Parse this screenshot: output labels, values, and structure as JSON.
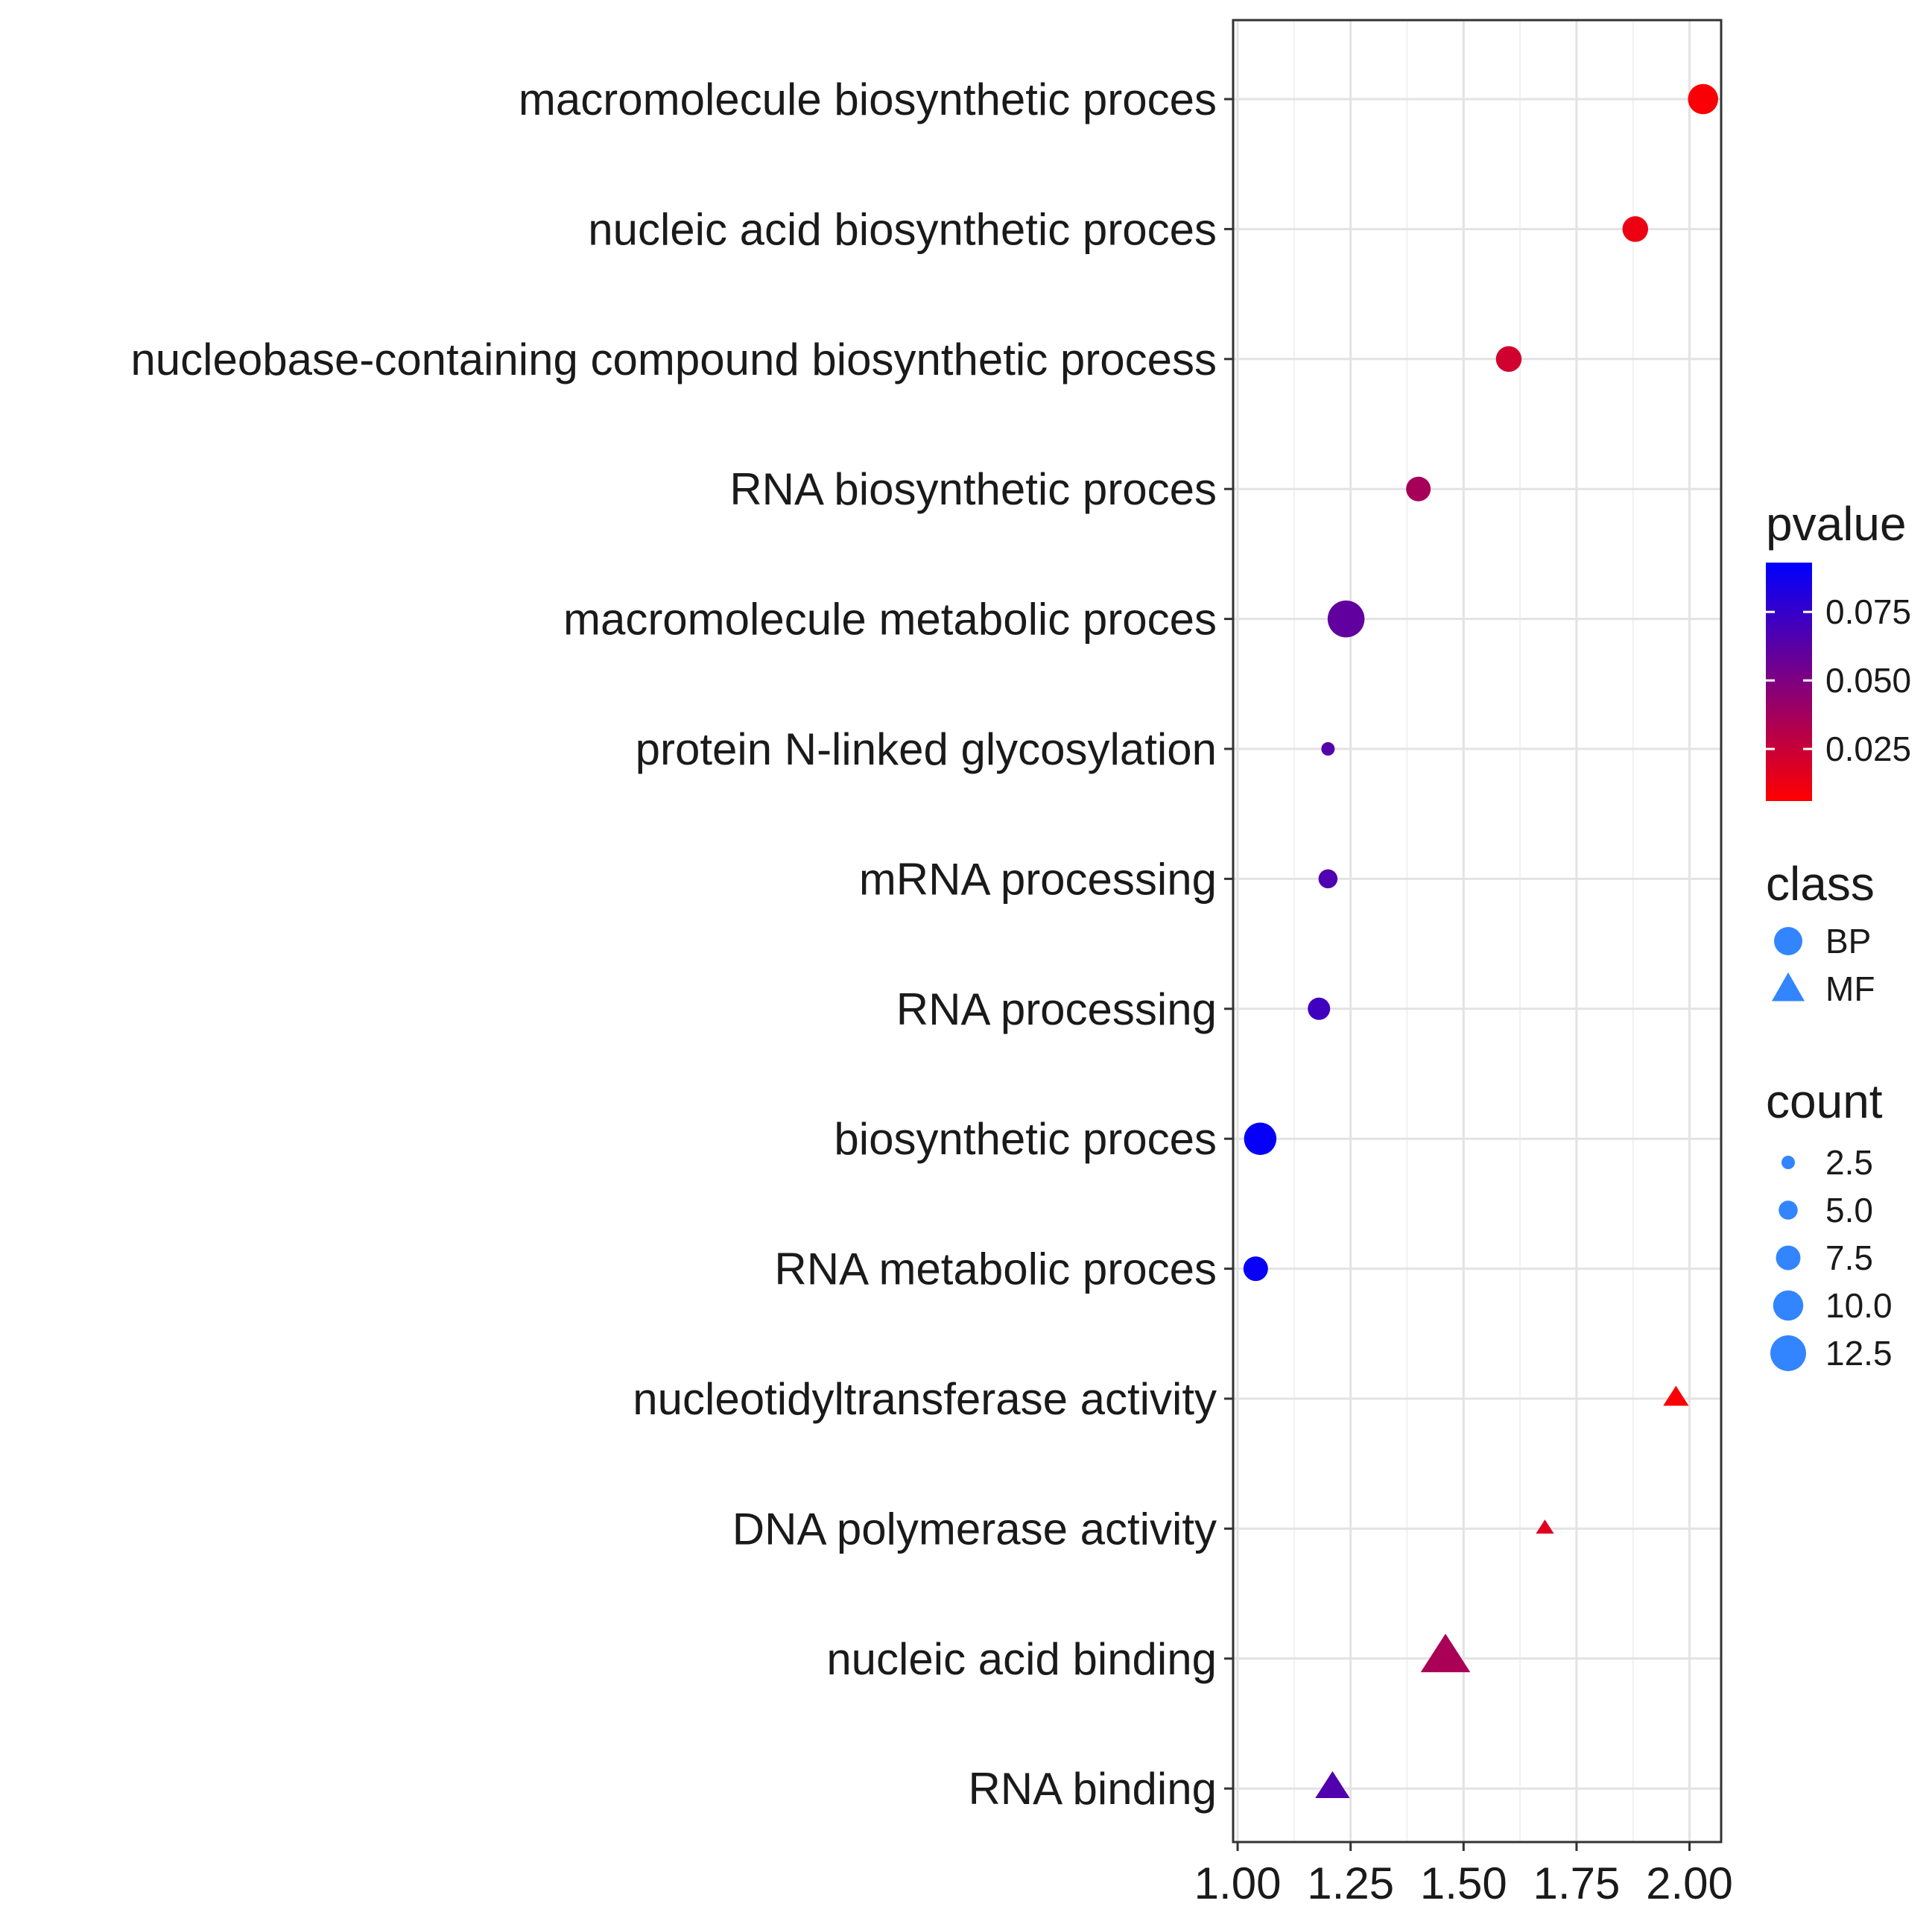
{
  "chart_data": {
    "type": "scatter",
    "title": "",
    "xlabel": "",
    "ylabel": "",
    "xlim": [
      0.99,
      2.07
    ],
    "x_ticks": [
      1.0,
      1.25,
      1.5,
      1.75,
      2.0
    ],
    "x_tick_labels": [
      "1.00",
      "1.25",
      "1.50",
      "1.75",
      "2.00"
    ],
    "grid": true,
    "legend_position": "right",
    "categories": [
      "macromolecule biosynthetic proces",
      "nucleic acid biosynthetic proces",
      "nucleobase-containing compound biosynthetic process",
      "RNA biosynthetic proces",
      "macromolecule metabolic proces",
      "protein N-linked glycosylation",
      "mRNA processing",
      "RNA processing",
      "biosynthetic proces",
      "RNA metabolic proces",
      "nucleotidyltransferase activity",
      "DNA polymerase activity",
      "nucleic acid binding",
      "RNA binding"
    ],
    "points": [
      {
        "term": "macromolecule biosynthetic proces",
        "x": 2.03,
        "pvalue": 0.008,
        "count": 10.0,
        "class": "BP"
      },
      {
        "term": "nucleic acid biosynthetic proces",
        "x": 1.88,
        "pvalue": 0.012,
        "count": 8.0,
        "class": "BP"
      },
      {
        "term": "nucleobase-containing compound biosynthetic process",
        "x": 1.6,
        "pvalue": 0.022,
        "count": 8.0,
        "class": "BP"
      },
      {
        "term": "RNA biosynthetic proces",
        "x": 1.4,
        "pvalue": 0.036,
        "count": 7.5,
        "class": "BP"
      },
      {
        "term": "macromolecule metabolic proces",
        "x": 1.24,
        "pvalue": 0.06,
        "count": 13.0,
        "class": "BP"
      },
      {
        "term": "protein N-linked glycosylation",
        "x": 1.2,
        "pvalue": 0.064,
        "count": 2.5,
        "class": "BP"
      },
      {
        "term": "mRNA processing",
        "x": 1.2,
        "pvalue": 0.066,
        "count": 5.0,
        "class": "BP"
      },
      {
        "term": "RNA processing",
        "x": 1.18,
        "pvalue": 0.071,
        "count": 6.5,
        "class": "BP"
      },
      {
        "term": "biosynthetic proces",
        "x": 1.05,
        "pvalue": 0.091,
        "count": 11.0,
        "class": "BP"
      },
      {
        "term": "RNA metabolic proces",
        "x": 1.04,
        "pvalue": 0.09,
        "count": 7.5,
        "class": "BP"
      },
      {
        "term": "nucleotidyltransferase activity",
        "x": 1.97,
        "pvalue": 0.007,
        "count": 5.0,
        "class": "MF"
      },
      {
        "term": "DNA polymerase activity",
        "x": 1.68,
        "pvalue": 0.017,
        "count": 2.5,
        "class": "MF"
      },
      {
        "term": "nucleic acid binding",
        "x": 1.46,
        "pvalue": 0.035,
        "count": 13.0,
        "class": "MF"
      },
      {
        "term": "RNA binding",
        "x": 1.21,
        "pvalue": 0.065,
        "count": 8.0,
        "class": "MF"
      }
    ],
    "legend": {
      "pvalue": {
        "title": "pvalue",
        "range": [
          0.006,
          0.093
        ],
        "low_color": "#ff0000",
        "high_color": "#0000ff",
        "ticks": [
          0.025,
          0.05,
          0.075
        ],
        "tick_labels": [
          "0.025",
          "0.050",
          "0.075"
        ]
      },
      "class": {
        "title": "class",
        "items": [
          {
            "label": "BP",
            "shape": "circle"
          },
          {
            "label": "MF",
            "shape": "triangle"
          }
        ],
        "color": "#3385ff"
      },
      "count": {
        "title": "count",
        "values": [
          2.5,
          5.0,
          7.5,
          10.0,
          12.5
        ],
        "labels": [
          "2.5",
          "5.0",
          "7.5",
          "10.0",
          "12.5"
        ],
        "color": "#3385ff"
      }
    }
  }
}
